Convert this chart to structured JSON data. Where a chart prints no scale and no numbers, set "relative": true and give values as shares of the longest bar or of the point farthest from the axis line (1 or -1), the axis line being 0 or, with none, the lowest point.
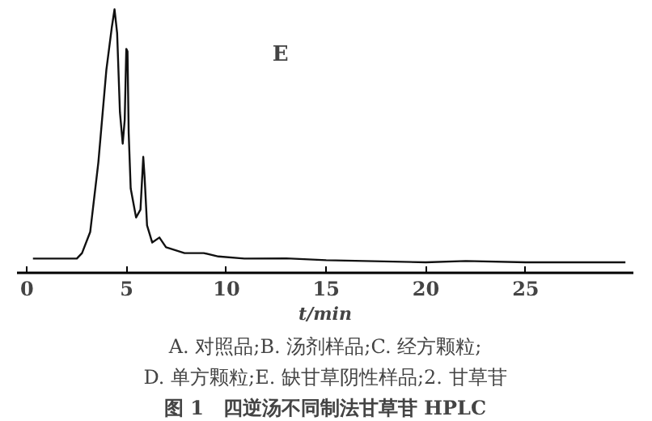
{
  "chart_data": {
    "type": "line",
    "relative": true,
    "xlabel": "t/min",
    "xlim": [
      -0.5,
      30.4
    ],
    "xticks": [
      0,
      5,
      10,
      15,
      20,
      25
    ],
    "tick_labels": "x",
    "grid": false,
    "annotations": [
      "E",
      "A. 对照品;B. 汤剂样品;C. 经方颗粒;",
      "D. 单方颗粒;E. 缺甘草阴性样品;2. 甘草苷",
      "图 1　四逆汤不同制法甘草苷 HPLC"
    ],
    "series": [
      {
        "color": "#111111",
        "x": [
          0.3,
          2.5,
          2.76,
          3.17,
          3.58,
          3.98,
          4.25,
          4.39,
          4.52,
          4.66,
          4.8,
          4.9,
          4.98,
          5.04,
          5.1,
          5.2,
          5.47,
          5.69,
          5.83,
          5.9,
          6.02,
          6.28,
          6.64,
          6.97,
          7.9,
          8.86,
          9.6,
          10.9,
          13,
          15,
          20,
          22,
          25,
          30
        ],
        "values": [
          0.054,
          0.054,
          0.075,
          0.155,
          0.42,
          0.77,
          0.93,
          1,
          0.91,
          0.61,
          0.49,
          0.58,
          0.85,
          0.84,
          0.53,
          0.32,
          0.21,
          0.24,
          0.44,
          0.36,
          0.18,
          0.115,
          0.134,
          0.097,
          0.075,
          0.075,
          0.062,
          0.054,
          0.055,
          0.048,
          0.04,
          0.045,
          0.04,
          0.04
        ]
      }
    ]
  }
}
